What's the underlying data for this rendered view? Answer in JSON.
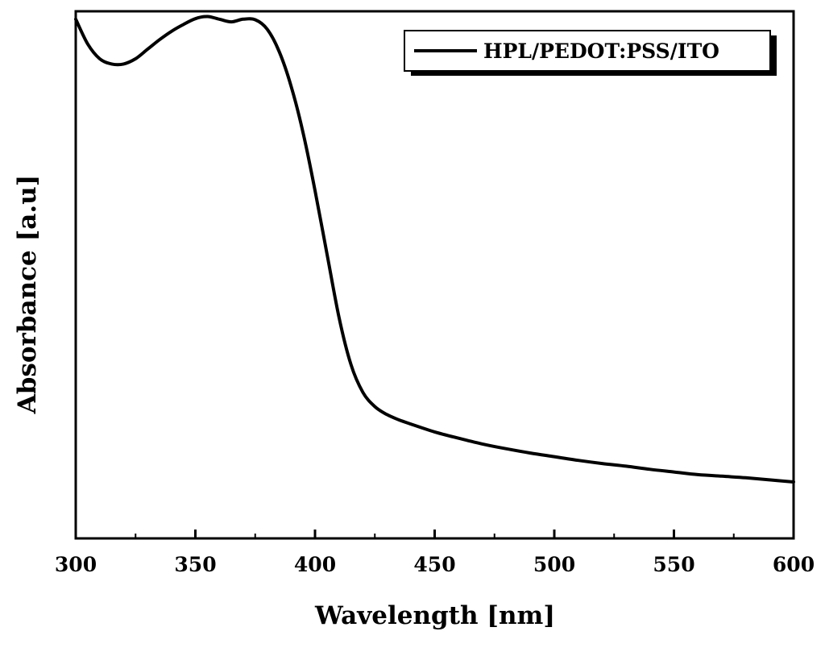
{
  "chart_data": {
    "type": "line",
    "title": "",
    "xlabel": "Wavelength [nm]",
    "ylabel": "Absorbance [a.u]",
    "xlim": [
      300,
      600
    ],
    "ylim": [
      0,
      1
    ],
    "x_ticks": [
      300,
      350,
      400,
      450,
      500,
      550,
      600
    ],
    "x_tick_labels": [
      "300",
      "350",
      "400",
      "450",
      "500",
      "550",
      "600"
    ],
    "y_ticks_visible": false,
    "legend_position": "top-right",
    "grid": false,
    "series": [
      {
        "name": "HPL/PEDOT:PSS/ITO",
        "color": "#000000",
        "x": [
          300,
          305,
          310,
          315,
          320,
          325,
          330,
          335,
          340,
          345,
          350,
          355,
          360,
          365,
          370,
          375,
          380,
          385,
          390,
          395,
          400,
          405,
          410,
          415,
          420,
          425,
          430,
          435,
          440,
          450,
          460,
          470,
          480,
          490,
          500,
          510,
          520,
          530,
          540,
          550,
          560,
          570,
          580,
          590,
          600
        ],
        "values": [
          0.985,
          0.938,
          0.91,
          0.9,
          0.9,
          0.91,
          0.928,
          0.946,
          0.962,
          0.975,
          0.986,
          0.99,
          0.985,
          0.98,
          0.985,
          0.984,
          0.966,
          0.924,
          0.858,
          0.77,
          0.66,
          0.54,
          0.42,
          0.33,
          0.277,
          0.25,
          0.235,
          0.225,
          0.217,
          0.202,
          0.19,
          0.179,
          0.17,
          0.162,
          0.155,
          0.148,
          0.142,
          0.137,
          0.131,
          0.126,
          0.121,
          0.118,
          0.115,
          0.111,
          0.107
        ]
      }
    ]
  }
}
